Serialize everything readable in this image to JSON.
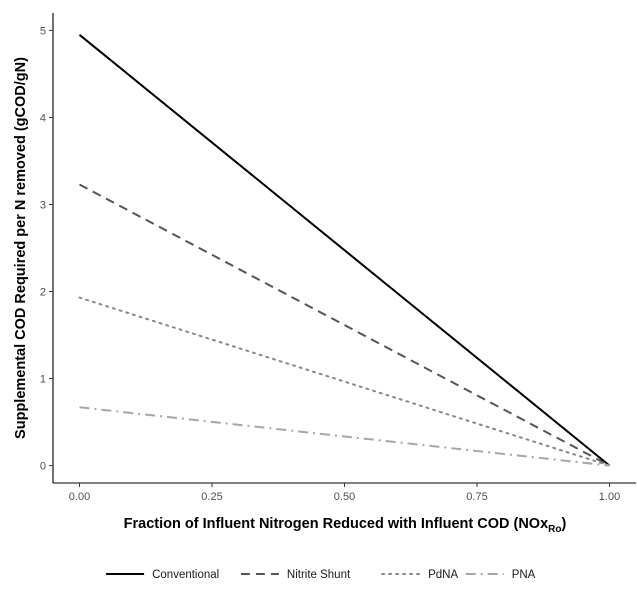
{
  "chart_data": {
    "type": "line",
    "xlabel": "Fraction of Influent Nitrogen Reduced with Influent COD (NOx",
    "xlabel_subscript": "Ro",
    "xlabel_suffix": ")",
    "ylabel": "Supplemental COD Required per N removed (gCOD/gN)",
    "xlim": [
      -0.05,
      1.05
    ],
    "ylim": [
      -0.2,
      5.2
    ],
    "x_ticks": [
      0.0,
      0.25,
      0.5,
      0.75,
      1.0
    ],
    "x_tick_labels": [
      "0.00",
      "0.25",
      "0.50",
      "0.75",
      "1.00"
    ],
    "y_ticks": [
      0,
      1,
      2,
      3,
      4,
      5
    ],
    "y_tick_labels": [
      "0",
      "1",
      "2",
      "3",
      "4",
      "5"
    ],
    "grid": false,
    "legend_position": "bottom",
    "x": [
      0.0,
      1.0
    ],
    "series": [
      {
        "name": "Conventional",
        "values": [
          4.95,
          0.0
        ],
        "color": "#000000",
        "dash": "solid"
      },
      {
        "name": "Nitrite Shunt",
        "values": [
          3.23,
          0.0
        ],
        "color": "#555555",
        "dash": "dashed"
      },
      {
        "name": "PdNA",
        "values": [
          1.93,
          0.0
        ],
        "color": "#888888",
        "dash": "dotted"
      },
      {
        "name": "PNA",
        "values": [
          0.67,
          0.0
        ],
        "color": "#a6a6a6",
        "dash": "dashdot"
      }
    ]
  }
}
